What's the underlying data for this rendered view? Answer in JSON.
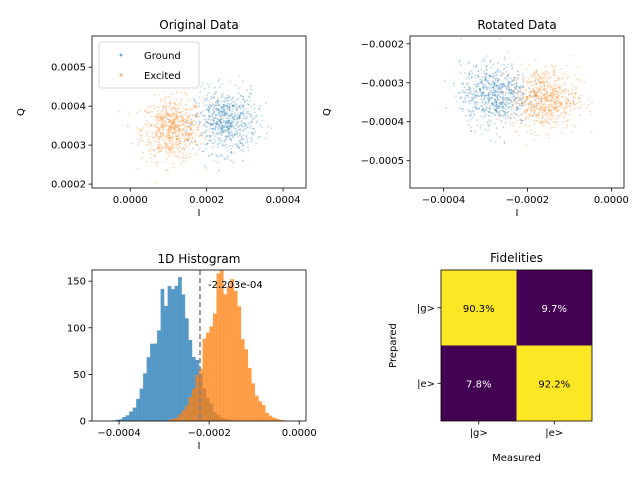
{
  "colors": {
    "ground": "#1f77b4",
    "excited": "#ff7f0e",
    "cell_high": "#fde725",
    "cell_low": "#440154",
    "threshold_line": "#808080"
  },
  "chart_data": [
    {
      "type": "scatter",
      "title": "Original Data",
      "xlabel": "I",
      "ylabel": "Q",
      "xlim": [
        -0.0001,
        0.00046
      ],
      "ylim": [
        0.00019,
        0.00058
      ],
      "xticks": [
        0.0,
        0.0002,
        0.0004
      ],
      "xtick_labels": [
        "0.0000",
        "0.0002",
        "0.0004"
      ],
      "yticks": [
        0.0002,
        0.0003,
        0.0004,
        0.0005
      ],
      "ytick_labels": [
        "0.0002",
        "0.0003",
        "0.0004",
        "0.0005"
      ],
      "legend": "top-left",
      "series": [
        {
          "name": "Ground",
          "color": "#1f77b4",
          "center": [
            0.00025,
            0.00036
          ],
          "spread": [
            4e-05,
            4e-05
          ],
          "n": 700
        },
        {
          "name": "Excited",
          "color": "#ff7f0e",
          "center": [
            0.00011,
            0.00034
          ],
          "spread": [
            4e-05,
            4e-05
          ],
          "n": 700
        }
      ]
    },
    {
      "type": "scatter",
      "title": "Rotated Data",
      "xlabel": "I",
      "ylabel": "Q",
      "xlim": [
        -0.00048,
        3e-05
      ],
      "ylim": [
        -0.00057,
        -0.00018
      ],
      "xticks": [
        -0.0004,
        -0.0002,
        0.0
      ],
      "xtick_labels": [
        "−0.0004",
        "−0.0002",
        "0.0000"
      ],
      "yticks": [
        -0.0005,
        -0.0004,
        -0.0003,
        -0.0002
      ],
      "ytick_labels": [
        "−0.0005",
        "−0.0004",
        "−0.0003",
        "−0.0002"
      ],
      "series": [
        {
          "name": "Ground",
          "color": "#1f77b4",
          "center": [
            -0.00028,
            -0.00033
          ],
          "spread": [
            4e-05,
            4e-05
          ],
          "n": 700
        },
        {
          "name": "Excited",
          "color": "#ff7f0e",
          "center": [
            -0.00016,
            -0.00034
          ],
          "spread": [
            4e-05,
            4e-05
          ],
          "n": 700
        }
      ]
    },
    {
      "type": "bar",
      "title": "1D Histogram",
      "xlabel": "I",
      "xlim": [
        -0.00046,
        1.5e-05
      ],
      "ylim": [
        0,
        162
      ],
      "xticks": [
        -0.0004,
        -0.0002,
        0.0
      ],
      "xtick_labels": [
        "−0.0004",
        "−0.0002",
        "0.0000"
      ],
      "yticks": [
        0,
        50,
        100,
        150
      ],
      "ytick_labels": [
        "0",
        "50",
        "100",
        "150"
      ],
      "threshold": -0.0002203,
      "threshold_label": "-2.203e-04",
      "series": [
        {
          "name": "Ground",
          "color": "#1f77b4",
          "center": -0.00028,
          "sigma": 4e-05,
          "peak": 155
        },
        {
          "name": "Excited",
          "color": "#ff7f0e",
          "center": -0.000165,
          "sigma": 4e-05,
          "peak": 150
        }
      ]
    },
    {
      "type": "heatmap",
      "title": "Fidelities",
      "xlabel": "Measured",
      "ylabel": "Prepared",
      "x_categories": [
        "|g>",
        "|e>"
      ],
      "y_categories": [
        "|g>",
        "|e>"
      ],
      "values": [
        [
          0.903,
          0.097
        ],
        [
          0.078,
          0.922
        ]
      ],
      "labels": [
        [
          "90.3%",
          "9.7%"
        ],
        [
          "7.8%",
          "92.2%"
        ]
      ]
    }
  ]
}
